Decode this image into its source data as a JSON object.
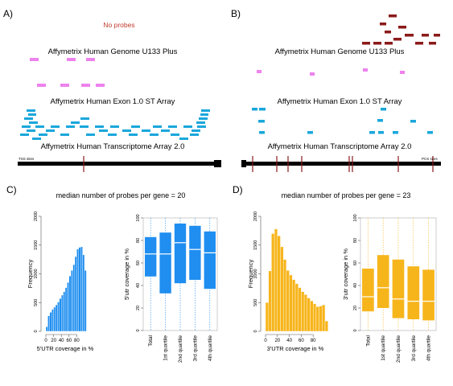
{
  "colors": {
    "magenta": "#ee82ee",
    "cyan": "#1aa7dc",
    "darkred": "#8b1a1a",
    "blue": "#1f8ef0",
    "orange": "#f7b51c",
    "black": "#000000"
  },
  "panelA": {
    "label": "A)",
    "no_probes": "No probes",
    "u133_title": "Affymetrix Human Genome U133 Plus",
    "exon_title": "Affymetrix Human Exon 1.0 ST Array",
    "transcriptome_title": "Affymetrix Human Transcriptome Array 2.0",
    "site_label": "TSS sites"
  },
  "panelB": {
    "label": "B)",
    "u133_title": "Affymetrix Human Genome U133 Plus",
    "exon_title": "Affymetrix Human Exon 1.0 ST Array",
    "transcriptome_title": "Affymetrix Human Transcriptome Array 2.0",
    "site_label": "PCS sites"
  },
  "panelC": {
    "label": "C)",
    "median_text": "median number of probes per gene = 20"
  },
  "panelD": {
    "label": "D)",
    "median_text": "median number of probes per gene = 23"
  },
  "chart_data": [
    {
      "type": "bar",
      "panel": "C-histogram",
      "xlabel": "5'UTR coverage in %",
      "ylabel": "Frequency",
      "xlim": [
        0,
        100
      ],
      "ylim": [
        0,
        2000
      ],
      "xticks": [
        "0",
        "20",
        "40",
        "60",
        "80"
      ],
      "yticks": [
        "0",
        "500",
        "1000",
        "1500",
        "2000"
      ],
      "bin_width": 5,
      "values": [
        80,
        270,
        330,
        380,
        420,
        460,
        510,
        570,
        630,
        690,
        760,
        850,
        960,
        1060,
        1160,
        1300,
        1430,
        1460,
        1470,
        1330,
        1060
      ]
    },
    {
      "type": "boxplot",
      "panel": "C-boxplot",
      "ylabel": "5'utr coverage in %",
      "ylim": [
        0,
        100
      ],
      "yticks": [
        "0",
        "20",
        "40",
        "60",
        "80",
        "100"
      ],
      "categories": [
        "Total",
        "1st quartile",
        "2nd quartile",
        "3rd quartile",
        "4th quartile"
      ],
      "boxes": [
        {
          "min": 0,
          "q1": 48,
          "median": 68,
          "q3": 83,
          "max": 100
        },
        {
          "min": 0,
          "q1": 33,
          "median": 68,
          "q3": 87,
          "max": 100
        },
        {
          "min": 0,
          "q1": 42,
          "median": 78,
          "q3": 95,
          "max": 100
        },
        {
          "min": 0,
          "q1": 45,
          "median": 72,
          "q3": 93,
          "max": 100
        },
        {
          "min": 0,
          "q1": 37,
          "median": 69,
          "q3": 88,
          "max": 100
        }
      ]
    },
    {
      "type": "bar",
      "panel": "D-histogram",
      "xlabel": "3'UTR coverage in %",
      "ylabel": "Frequency",
      "xlim": [
        0,
        100
      ],
      "ylim": [
        0,
        2000
      ],
      "xticks": [
        "0",
        "20",
        "40",
        "60",
        "80"
      ],
      "yticks": [
        "0",
        "500",
        "1000",
        "1500",
        "2000"
      ],
      "bin_width": 5,
      "values": [
        500,
        1050,
        1700,
        1780,
        1660,
        1470,
        1250,
        1060,
        980,
        900,
        830,
        760,
        690,
        640,
        580,
        530,
        480,
        430,
        440,
        460,
        180
      ]
    },
    {
      "type": "boxplot",
      "panel": "D-boxplot",
      "ylabel": "3'utr coverage in %",
      "ylim": [
        0,
        100
      ],
      "yticks": [
        "0",
        "20",
        "40",
        "60",
        "80",
        "100"
      ],
      "categories": [
        "Total",
        "1st quartile",
        "2nd quartile",
        "3rd quartile",
        "4th quartile"
      ],
      "boxes": [
        {
          "min": 0,
          "q1": 17,
          "median": 30,
          "q3": 55,
          "max": 100
        },
        {
          "min": 0,
          "q1": 20,
          "median": 38,
          "q3": 67,
          "max": 100
        },
        {
          "min": 0,
          "q1": 11,
          "median": 28,
          "q3": 63,
          "max": 100
        },
        {
          "min": 0,
          "q1": 10,
          "median": 26,
          "q3": 57,
          "max": 100
        },
        {
          "min": 0,
          "q1": 9,
          "median": 26,
          "q3": 54,
          "max": 100
        }
      ]
    }
  ]
}
